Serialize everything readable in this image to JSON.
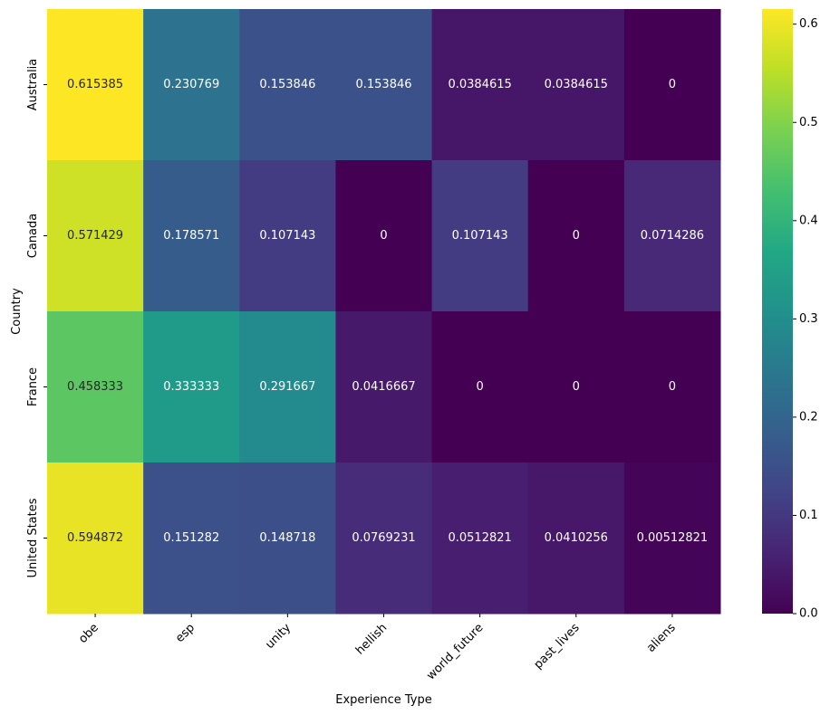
{
  "chart_data": {
    "type": "heatmap",
    "title": "",
    "xlabel": "Experience Type",
    "ylabel": "Country",
    "x_categories": [
      "obe",
      "esp",
      "unity",
      "hellish",
      "world_future",
      "past_lives",
      "aliens"
    ],
    "y_categories": [
      "Australia",
      "Canada",
      "France",
      "United States"
    ],
    "cell_labels": [
      [
        "0.615385",
        "0.230769",
        "0.153846",
        "0.153846",
        "0.0384615",
        "0.0384615",
        "0"
      ],
      [
        "0.571429",
        "0.178571",
        "0.107143",
        "0",
        "0.107143",
        "0",
        "0.0714286"
      ],
      [
        "0.458333",
        "0.333333",
        "0.291667",
        "0.0416667",
        "0",
        "0",
        "0"
      ],
      [
        "0.594872",
        "0.151282",
        "0.148718",
        "0.0769231",
        "0.0512821",
        "0.0410256",
        "0.00512821"
      ]
    ],
    "values": [
      [
        0.615385,
        0.230769,
        0.153846,
        0.153846,
        0.0384615,
        0.0384615,
        0
      ],
      [
        0.571429,
        0.178571,
        0.107143,
        0,
        0.107143,
        0,
        0.0714286
      ],
      [
        0.458333,
        0.333333,
        0.291667,
        0.0416667,
        0,
        0,
        0
      ],
      [
        0.594872,
        0.151282,
        0.148718,
        0.0769231,
        0.0512821,
        0.0410256,
        0.00512821
      ]
    ],
    "colormap": "viridis",
    "vmin": 0,
    "vmax": 0.615385,
    "colorbar_ticks": [
      "0.0",
      "0.1",
      "0.2",
      "0.3",
      "0.4",
      "0.5",
      "0.6"
    ],
    "colorbar_tick_values": [
      0,
      0.1,
      0.2,
      0.3,
      0.4,
      0.5,
      0.6
    ]
  }
}
